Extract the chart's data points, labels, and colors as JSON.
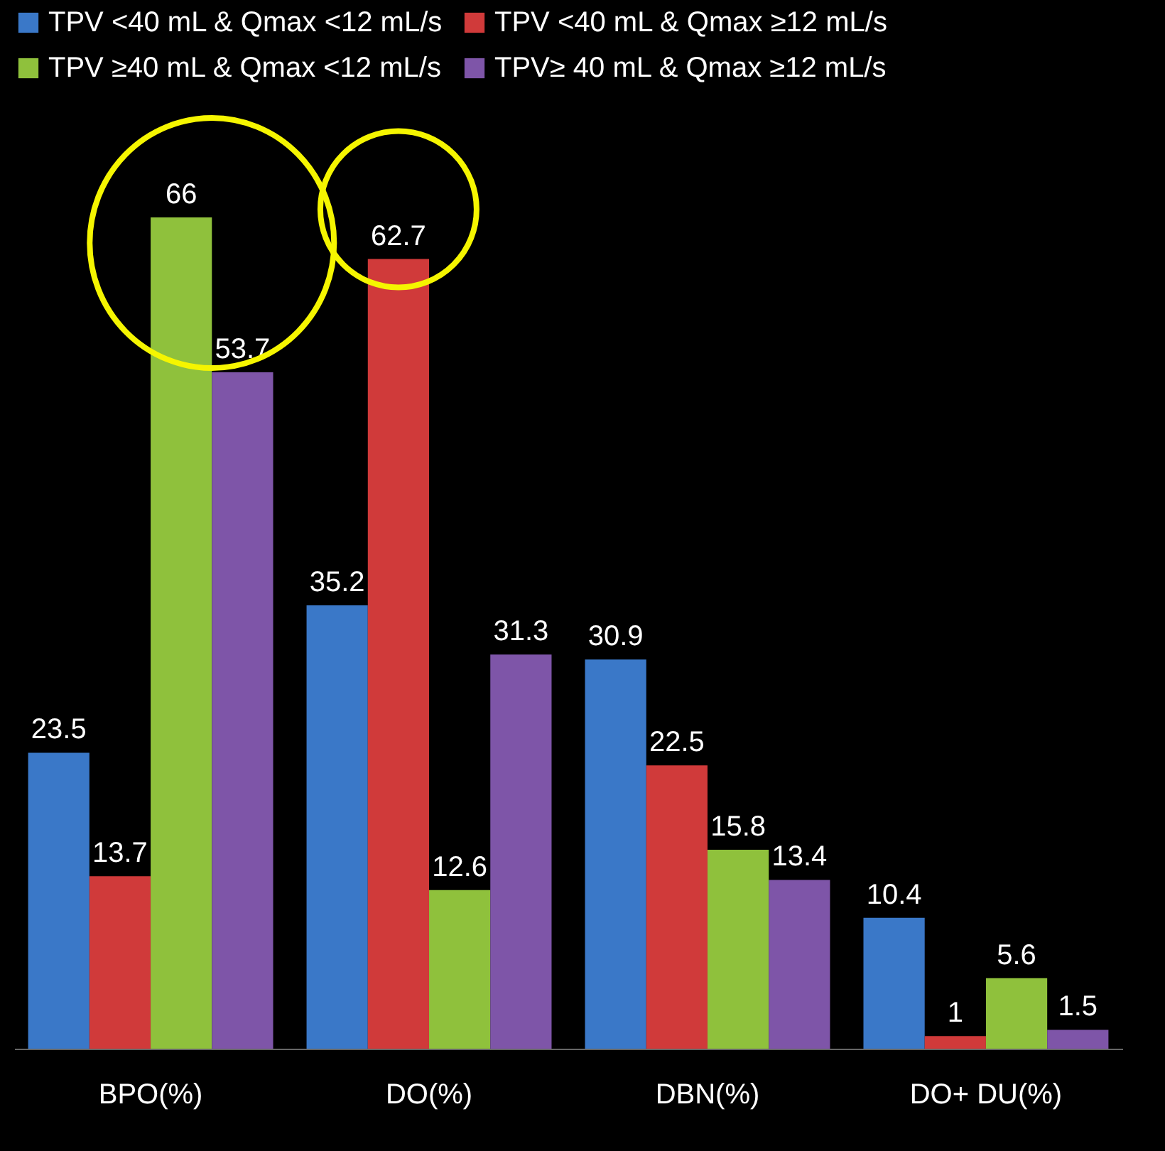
{
  "chart_data": {
    "type": "bar",
    "categories": [
      "BPO(%)",
      "DO(%)",
      "DBN(%)",
      "DO+ DU(%)"
    ],
    "series": [
      {
        "name": "TPV <40 mL & Qmax <12 mL/s",
        "color": "#3a78c8",
        "values": [
          23.5,
          35.2,
          30.9,
          10.4
        ]
      },
      {
        "name": "TPV <40 mL & Qmax ≥12 mL/s",
        "color": "#d03a3a",
        "values": [
          13.7,
          62.7,
          22.5,
          1
        ]
      },
      {
        "name": "TPV ≥40 mL & Qmax <12 mL/s",
        "color": "#8fc13c",
        "values": [
          66,
          12.6,
          15.8,
          5.6
        ]
      },
      {
        "name": "TPV≥ 40 mL & Qmax ≥12 mL/s",
        "color": "#7e55a8",
        "values": [
          53.7,
          31.3,
          13.4,
          1.5
        ]
      }
    ],
    "data_labels": true,
    "legend": "top",
    "grid": false
  }
}
